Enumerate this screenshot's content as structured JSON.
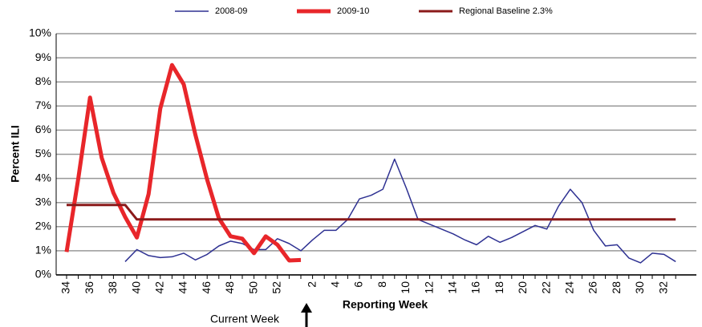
{
  "chart_data": {
    "type": "line",
    "y_axis_label": "Percent ILI",
    "x_axis_label": "Reporting Week",
    "annotation": "Current Week",
    "categories": [
      "34",
      null,
      "36",
      null,
      "38",
      null,
      "40",
      null,
      "42",
      null,
      "44",
      null,
      "46",
      null,
      "48",
      null,
      "50",
      null,
      "52",
      null,
      null,
      "2",
      null,
      "4",
      null,
      "6",
      null,
      "8",
      null,
      "10",
      null,
      "12",
      null,
      "14",
      null,
      "16",
      null,
      "18",
      null,
      "20",
      null,
      "22",
      null,
      "24",
      null,
      "26",
      null,
      "28",
      null,
      "30",
      null,
      "32",
      null
    ],
    "series": [
      {
        "name": "2008-09",
        "color": "#2e3192",
        "values": [
          null,
          null,
          null,
          null,
          null,
          0.55,
          1.05,
          0.8,
          0.72,
          0.75,
          0.9,
          0.62,
          0.85,
          1.2,
          1.4,
          1.3,
          1.05,
          1.05,
          1.5,
          1.3,
          1.0,
          1.45,
          1.85,
          1.85,
          2.3,
          3.15,
          3.3,
          3.55,
          4.8,
          3.6,
          2.3,
          2.1,
          1.9,
          1.7,
          1.45,
          1.25,
          1.6,
          1.35,
          1.55,
          1.8,
          2.05,
          1.9,
          2.85,
          3.55,
          3.0,
          1.85,
          1.2,
          1.25,
          0.7,
          0.5,
          0.9,
          0.85,
          0.55
        ]
      },
      {
        "name": "2009-10",
        "color": "#e8262a",
        "values": [
          0.95,
          4.0,
          7.35,
          4.85,
          3.4,
          2.4,
          1.55,
          3.35,
          6.9,
          8.7,
          7.9,
          5.8,
          3.95,
          2.35,
          1.6,
          1.5,
          0.9,
          1.6,
          1.25,
          0.6,
          0.62,
          null,
          null,
          null,
          null,
          null,
          null,
          null,
          null,
          null,
          null,
          null,
          null,
          null,
          null,
          null,
          null,
          null,
          null,
          null,
          null,
          null,
          null,
          null,
          null,
          null,
          null,
          null,
          null,
          null,
          null,
          null,
          null
        ]
      },
      {
        "name": "Regional Baseline 2.3%",
        "color": "#8b1a1a",
        "values": [
          2.9,
          2.9,
          2.9,
          2.9,
          2.9,
          2.9,
          2.3,
          2.3,
          2.3,
          2.3,
          2.3,
          2.3,
          2.3,
          2.3,
          2.3,
          2.3,
          2.3,
          2.3,
          2.3,
          2.3,
          2.3,
          2.3,
          2.3,
          2.3,
          2.3,
          2.3,
          2.3,
          2.3,
          2.3,
          2.3,
          2.3,
          2.3,
          2.3,
          2.3,
          2.3,
          2.3,
          2.3,
          2.3,
          2.3,
          2.3,
          2.3,
          2.3,
          2.3,
          2.3,
          2.3,
          2.3,
          2.3,
          2.3,
          2.3,
          2.3,
          2.3,
          2.3,
          2.3
        ]
      }
    ],
    "ylim": [
      0,
      10
    ],
    "yticks": [
      {
        "value": 0,
        "label": "0%"
      },
      {
        "value": 1,
        "label": "1%"
      },
      {
        "value": 2,
        "label": "2%"
      },
      {
        "value": 3,
        "label": "3%"
      },
      {
        "value": 4,
        "label": "4%"
      },
      {
        "value": 5,
        "label": "5%"
      },
      {
        "value": 6,
        "label": "6%"
      },
      {
        "value": 7,
        "label": "7%"
      },
      {
        "value": 8,
        "label": "8%"
      },
      {
        "value": 9,
        "label": "9%"
      },
      {
        "value": 10,
        "label": "10%"
      }
    ],
    "grid": true
  }
}
